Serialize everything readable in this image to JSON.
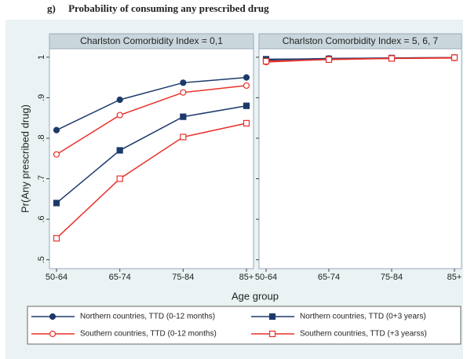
{
  "chart_data": {
    "type": "line",
    "title": "g)     Probability of consuming any prescribed drug",
    "ylabel": "Pr(Any prescribed drug)",
    "xlabel": "Age group",
    "categories": [
      "50-64",
      "65-74",
      "75-84",
      "85+"
    ],
    "ylim": [
      0.478,
      1.021
    ],
    "yticks": [
      {
        "value": 0.5,
        "label": ".5"
      },
      {
        "value": 0.6,
        "label": ".6"
      },
      {
        "value": 0.7,
        "label": ".7"
      },
      {
        "value": 0.8,
        "label": ".8"
      },
      {
        "value": 0.9,
        "label": ".9"
      },
      1
    ],
    "panels": [
      {
        "title": "Charlston Comorbidity Index = 0,1",
        "series": [
          {
            "name": "Northern countries, TTD (0-12 months)",
            "color": "#1b3a6b",
            "marker": "circle",
            "filled": true,
            "values": [
              0.82,
              0.895,
              0.937,
              0.95
            ]
          },
          {
            "name": "Northern countries, TTD (0+3 years)",
            "color": "#1b3a6b",
            "marker": "square",
            "filled": true,
            "values": [
              0.64,
              0.77,
              0.853,
              0.88
            ]
          },
          {
            "name": "Southern countries, TTD (0-12 months)",
            "color": "#e8312a",
            "marker": "circle",
            "filled": false,
            "values": [
              0.76,
              0.857,
              0.913,
              0.93
            ]
          },
          {
            "name": "Southern countries, TTD (+3 yearss)",
            "color": "#e8312a",
            "marker": "square",
            "filled": false,
            "values": [
              0.553,
              0.7,
              0.803,
              0.837
            ]
          }
        ]
      },
      {
        "title": "Charlston Comorbidity Index = 5, 6, 7",
        "series": [
          {
            "color": "#1b3a6b",
            "marker": "circle",
            "filled": true,
            "values": [
              0.993,
              0.997,
              0.998,
              0.999
            ]
          },
          {
            "color": "#1b3a6b",
            "marker": "square",
            "filled": true,
            "values": [
              0.995,
              0.996,
              0.998,
              0.999
            ]
          },
          {
            "color": "#e8312a",
            "marker": "circle",
            "filled": false,
            "values": [
              0.988,
              0.995,
              0.997,
              0.998
            ]
          },
          {
            "color": "#e8312a",
            "marker": "square",
            "filled": false,
            "values": [
              0.99,
              0.994,
              0.997,
              0.999
            ]
          }
        ]
      }
    ]
  }
}
